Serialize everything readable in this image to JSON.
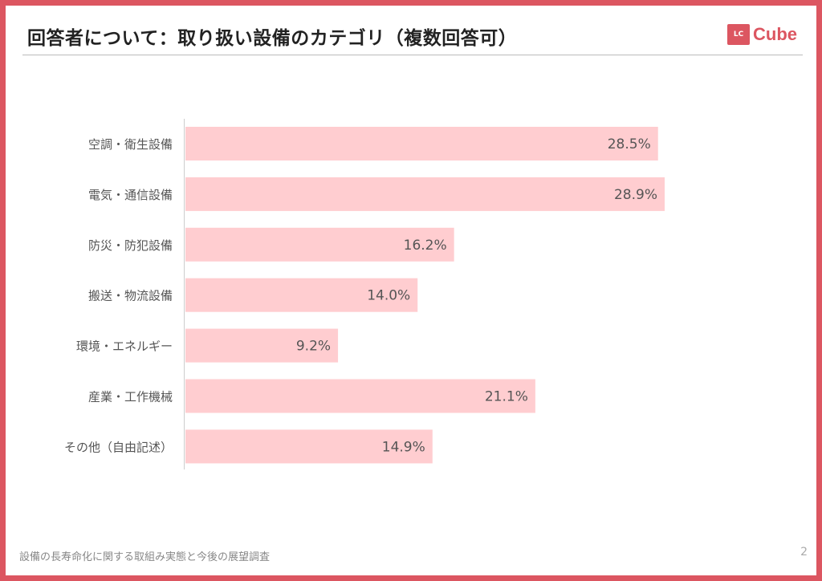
{
  "header": {
    "title": "回答者について：取り扱い設備のカテゴリ（複数回答可）",
    "logo_text": "LC Cube"
  },
  "footer": {
    "text": "設備の長寿命化に関する取組み実態と今後の展望調査",
    "page_number": "2"
  },
  "colors": {
    "bar": "#ffcdd0",
    "frame": "#dc5661"
  },
  "chart_data": {
    "type": "bar",
    "orientation": "horizontal",
    "categories": [
      "空調・衛生設備",
      "電気・通信設備",
      "防災・防犯設備",
      "搬送・物流設備",
      "環境・エネルギー",
      "産業・工作機械",
      "その他（自由記述）"
    ],
    "values": [
      28.5,
      28.9,
      16.2,
      14.0,
      9.2,
      21.1,
      14.9
    ],
    "data_labels": [
      "28.5%",
      "28.9%",
      "16.2%",
      "14.0%",
      "9.2%",
      "21.1%",
      "14.9%"
    ],
    "unit": "%",
    "grid": false
  }
}
